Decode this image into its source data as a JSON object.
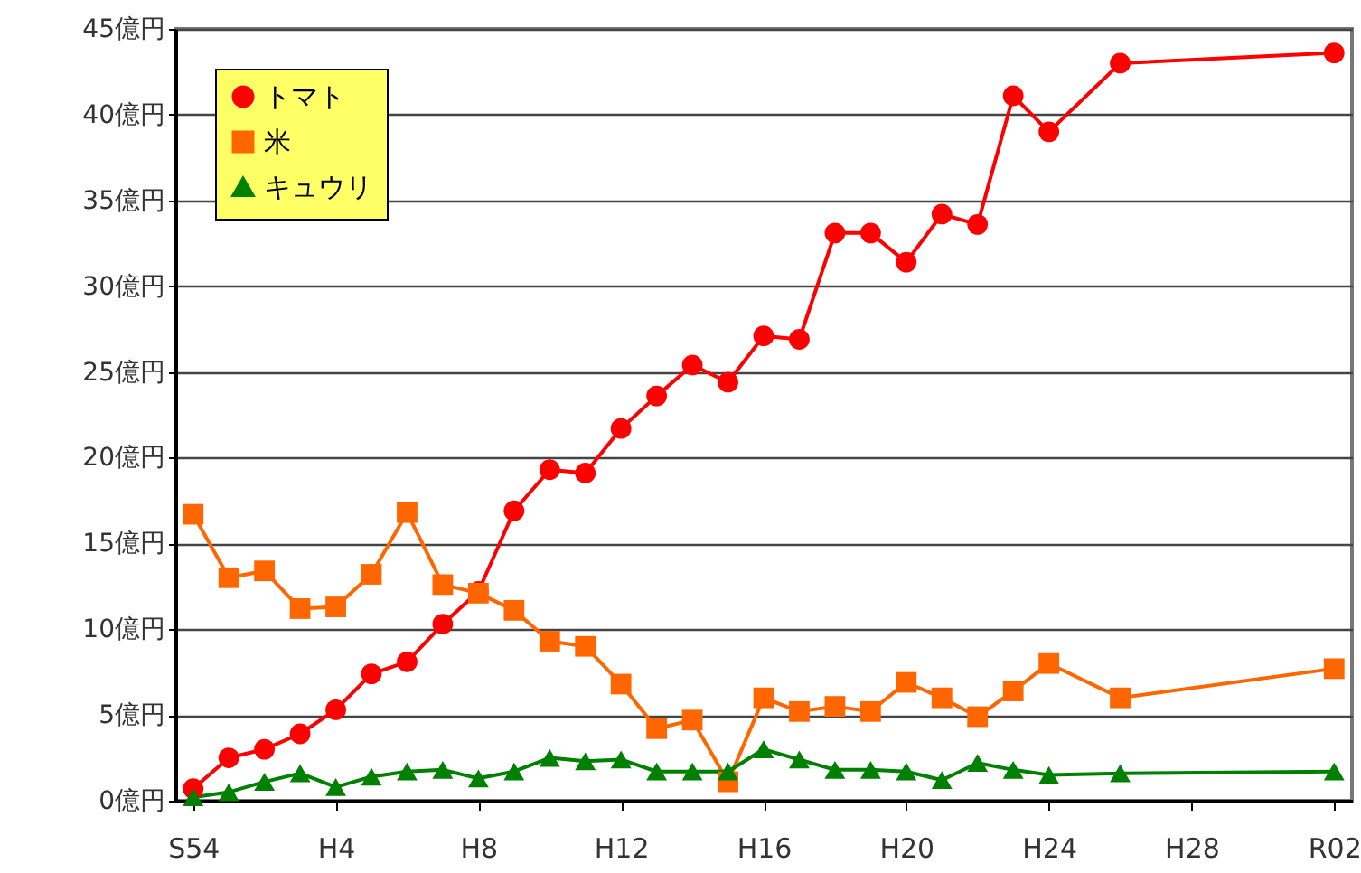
{
  "chart_data": {
    "type": "line",
    "categories": [
      "S54",
      null,
      null,
      null,
      "H4",
      null,
      null,
      null,
      "H8",
      null,
      null,
      null,
      "H12",
      null,
      null,
      null,
      "H16",
      null,
      null,
      null,
      "H20",
      null,
      null,
      null,
      "H24",
      null,
      null,
      null,
      "H28",
      null,
      null,
      null,
      "R02"
    ],
    "series": [
      {
        "name": "トマト",
        "color": "#ff0000",
        "marker": "circle",
        "values": [
          0.7,
          2.5,
          3.0,
          3.9,
          5.3,
          7.4,
          8.1,
          10.3,
          12.2,
          16.9,
          19.3,
          19.1,
          21.7,
          23.6,
          25.4,
          24.4,
          27.1,
          26.9,
          33.1,
          33.1,
          31.4,
          34.2,
          33.6,
          41.1,
          39.0,
          null,
          43.0,
          null,
          null,
          null,
          null,
          null,
          43.6
        ]
      },
      {
        "name": "米",
        "color": "#ff6600",
        "marker": "square",
        "values": [
          16.7,
          13.0,
          13.4,
          11.2,
          11.3,
          13.2,
          16.8,
          12.6,
          12.1,
          11.1,
          9.3,
          9.0,
          6.8,
          4.2,
          4.7,
          1.1,
          6.0,
          5.2,
          5.5,
          5.2,
          6.9,
          6.0,
          4.9,
          6.4,
          8.0,
          null,
          6.0,
          null,
          null,
          null,
          null,
          null,
          7.7
        ]
      },
      {
        "name": "キュウリ",
        "color": "#008000",
        "marker": "triangle",
        "values": [
          0.2,
          0.5,
          1.1,
          1.6,
          0.8,
          1.4,
          1.7,
          1.8,
          1.3,
          1.7,
          2.5,
          2.3,
          2.4,
          1.7,
          1.7,
          1.7,
          3.0,
          2.4,
          1.8,
          1.8,
          1.7,
          1.2,
          2.2,
          1.8,
          1.5,
          null,
          1.6,
          null,
          null,
          null,
          null,
          null,
          1.7
        ]
      }
    ],
    "ylim": [
      0,
      45
    ],
    "yticks": [
      {
        "value": 0,
        "label": "0億円"
      },
      {
        "value": 5,
        "label": "5億円"
      },
      {
        "value": 10,
        "label": "10億円"
      },
      {
        "value": 15,
        "label": "15億円"
      },
      {
        "value": 20,
        "label": "20億円"
      },
      {
        "value": 25,
        "label": "25億円"
      },
      {
        "value": 30,
        "label": "30億円"
      },
      {
        "value": 35,
        "label": "35億円"
      },
      {
        "value": 40,
        "label": "40億円"
      },
      {
        "value": 45,
        "label": "45億円"
      }
    ],
    "grid": "y",
    "legend": "top left",
    "line_style": "solid"
  }
}
